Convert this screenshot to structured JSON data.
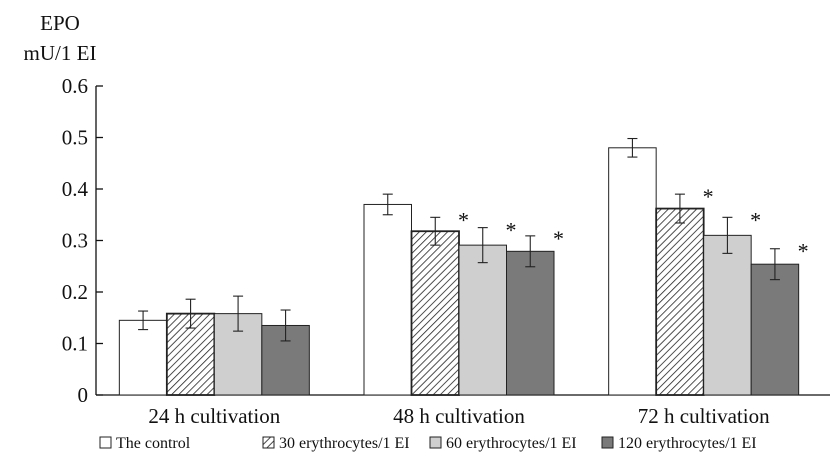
{
  "chart_data": {
    "type": "bar",
    "ylabel_line1": "EPO",
    "ylabel_line2": "mU/1 EI",
    "categories": [
      "24 h cultivation",
      "48 h cultivation",
      "72 h cultivation"
    ],
    "ylim": [
      0,
      0.6
    ],
    "yticks": [
      "0",
      "0.1",
      "0.2",
      "0.3",
      "0.4",
      "0.5",
      "0.6"
    ],
    "grid": false,
    "legend_position": "bottom",
    "significance_marker": "*",
    "series": [
      {
        "name": "The control",
        "fill": "#ffffff",
        "pattern": "none",
        "values": [
          0.145,
          0.37,
          0.48
        ],
        "errors": [
          0.018,
          0.02,
          0.018
        ],
        "significant": [
          false,
          false,
          false
        ]
      },
      {
        "name": "30 erythrocytes/1 EI",
        "fill": "#ffffff",
        "pattern": "hatch",
        "values": [
          0.158,
          0.318,
          0.362
        ],
        "errors": [
          0.028,
          0.027,
          0.028
        ],
        "significant": [
          false,
          true,
          true
        ]
      },
      {
        "name": "60 erythrocytes/1 EI",
        "fill": "#cfcfcf",
        "pattern": "none",
        "values": [
          0.158,
          0.291,
          0.31
        ],
        "errors": [
          0.034,
          0.034,
          0.035
        ],
        "significant": [
          false,
          true,
          true
        ]
      },
      {
        "name": "120 erythrocytes/1 EI",
        "fill": "#7a7a7a",
        "pattern": "none",
        "values": [
          0.135,
          0.279,
          0.254
        ],
        "errors": [
          0.03,
          0.03,
          0.03
        ],
        "significant": [
          false,
          true,
          true
        ]
      }
    ]
  }
}
